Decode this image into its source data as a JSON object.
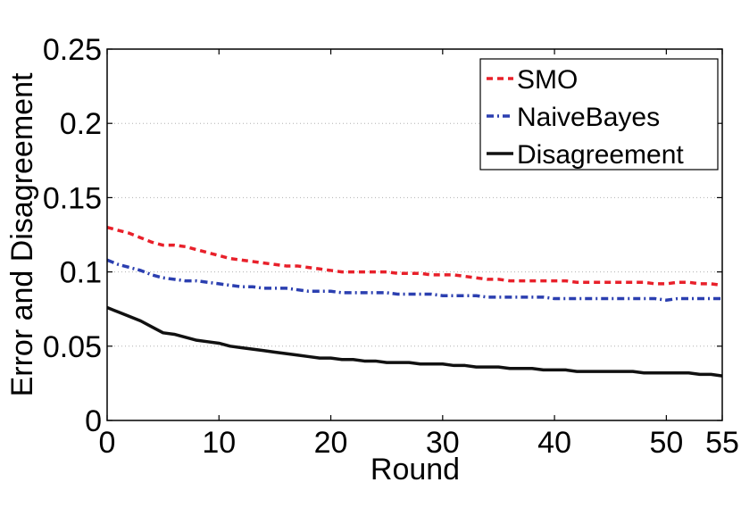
{
  "chart_data": {
    "type": "line",
    "title": "",
    "xlabel": "Round",
    "ylabel": "Error and Disagreement",
    "xlim": [
      0,
      55
    ],
    "ylim": [
      0,
      0.25
    ],
    "x_ticks": [
      0,
      10,
      20,
      30,
      40,
      50,
      55
    ],
    "x_tick_labels": [
      "0",
      "10",
      "20",
      "30",
      "40",
      "50",
      "55"
    ],
    "y_ticks": [
      0,
      0.05,
      0.1,
      0.15,
      0.2,
      0.25
    ],
    "y_tick_labels": [
      "0",
      "0.05",
      "0.1",
      "0.15",
      "0.2",
      "0.25"
    ],
    "grid": "horizontal-dotted",
    "legend_position": "top-right",
    "x": [
      0,
      1,
      2,
      3,
      4,
      5,
      6,
      7,
      8,
      9,
      10,
      11,
      12,
      13,
      14,
      15,
      16,
      17,
      18,
      19,
      20,
      21,
      22,
      23,
      24,
      25,
      26,
      27,
      28,
      29,
      30,
      31,
      32,
      33,
      34,
      35,
      36,
      37,
      38,
      39,
      40,
      41,
      42,
      43,
      44,
      45,
      46,
      47,
      48,
      49,
      50,
      51,
      52,
      53,
      54,
      55
    ],
    "series": [
      {
        "name": "SMO",
        "color": "#e8202a",
        "style": "dashed",
        "values": [
          0.13,
          0.128,
          0.126,
          0.123,
          0.12,
          0.118,
          0.118,
          0.117,
          0.115,
          0.113,
          0.111,
          0.109,
          0.108,
          0.107,
          0.106,
          0.105,
          0.104,
          0.104,
          0.103,
          0.102,
          0.101,
          0.1,
          0.1,
          0.1,
          0.1,
          0.1,
          0.099,
          0.099,
          0.099,
          0.098,
          0.098,
          0.098,
          0.097,
          0.096,
          0.095,
          0.095,
          0.094,
          0.094,
          0.094,
          0.094,
          0.094,
          0.094,
          0.093,
          0.093,
          0.093,
          0.093,
          0.093,
          0.093,
          0.093,
          0.092,
          0.092,
          0.093,
          0.093,
          0.092,
          0.092,
          0.091
        ]
      },
      {
        "name": "NaiveBayes",
        "color": "#2b3fb0",
        "style": "dashdot",
        "values": [
          0.108,
          0.105,
          0.103,
          0.101,
          0.098,
          0.096,
          0.095,
          0.094,
          0.094,
          0.093,
          0.092,
          0.091,
          0.09,
          0.09,
          0.089,
          0.089,
          0.089,
          0.088,
          0.087,
          0.087,
          0.087,
          0.086,
          0.086,
          0.086,
          0.086,
          0.086,
          0.085,
          0.085,
          0.085,
          0.085,
          0.084,
          0.084,
          0.084,
          0.084,
          0.083,
          0.083,
          0.083,
          0.083,
          0.083,
          0.083,
          0.082,
          0.082,
          0.082,
          0.082,
          0.082,
          0.082,
          0.082,
          0.082,
          0.082,
          0.082,
          0.081,
          0.082,
          0.082,
          0.082,
          0.082,
          0.082
        ]
      },
      {
        "name": "Disagreement",
        "color": "#111111",
        "style": "solid",
        "values": [
          0.076,
          0.073,
          0.07,
          0.067,
          0.063,
          0.059,
          0.058,
          0.056,
          0.054,
          0.053,
          0.052,
          0.05,
          0.049,
          0.048,
          0.047,
          0.046,
          0.045,
          0.044,
          0.043,
          0.042,
          0.042,
          0.041,
          0.041,
          0.04,
          0.04,
          0.039,
          0.039,
          0.039,
          0.038,
          0.038,
          0.038,
          0.037,
          0.037,
          0.036,
          0.036,
          0.036,
          0.035,
          0.035,
          0.035,
          0.034,
          0.034,
          0.034,
          0.033,
          0.033,
          0.033,
          0.033,
          0.033,
          0.033,
          0.032,
          0.032,
          0.032,
          0.032,
          0.032,
          0.031,
          0.031,
          0.03
        ]
      }
    ]
  }
}
